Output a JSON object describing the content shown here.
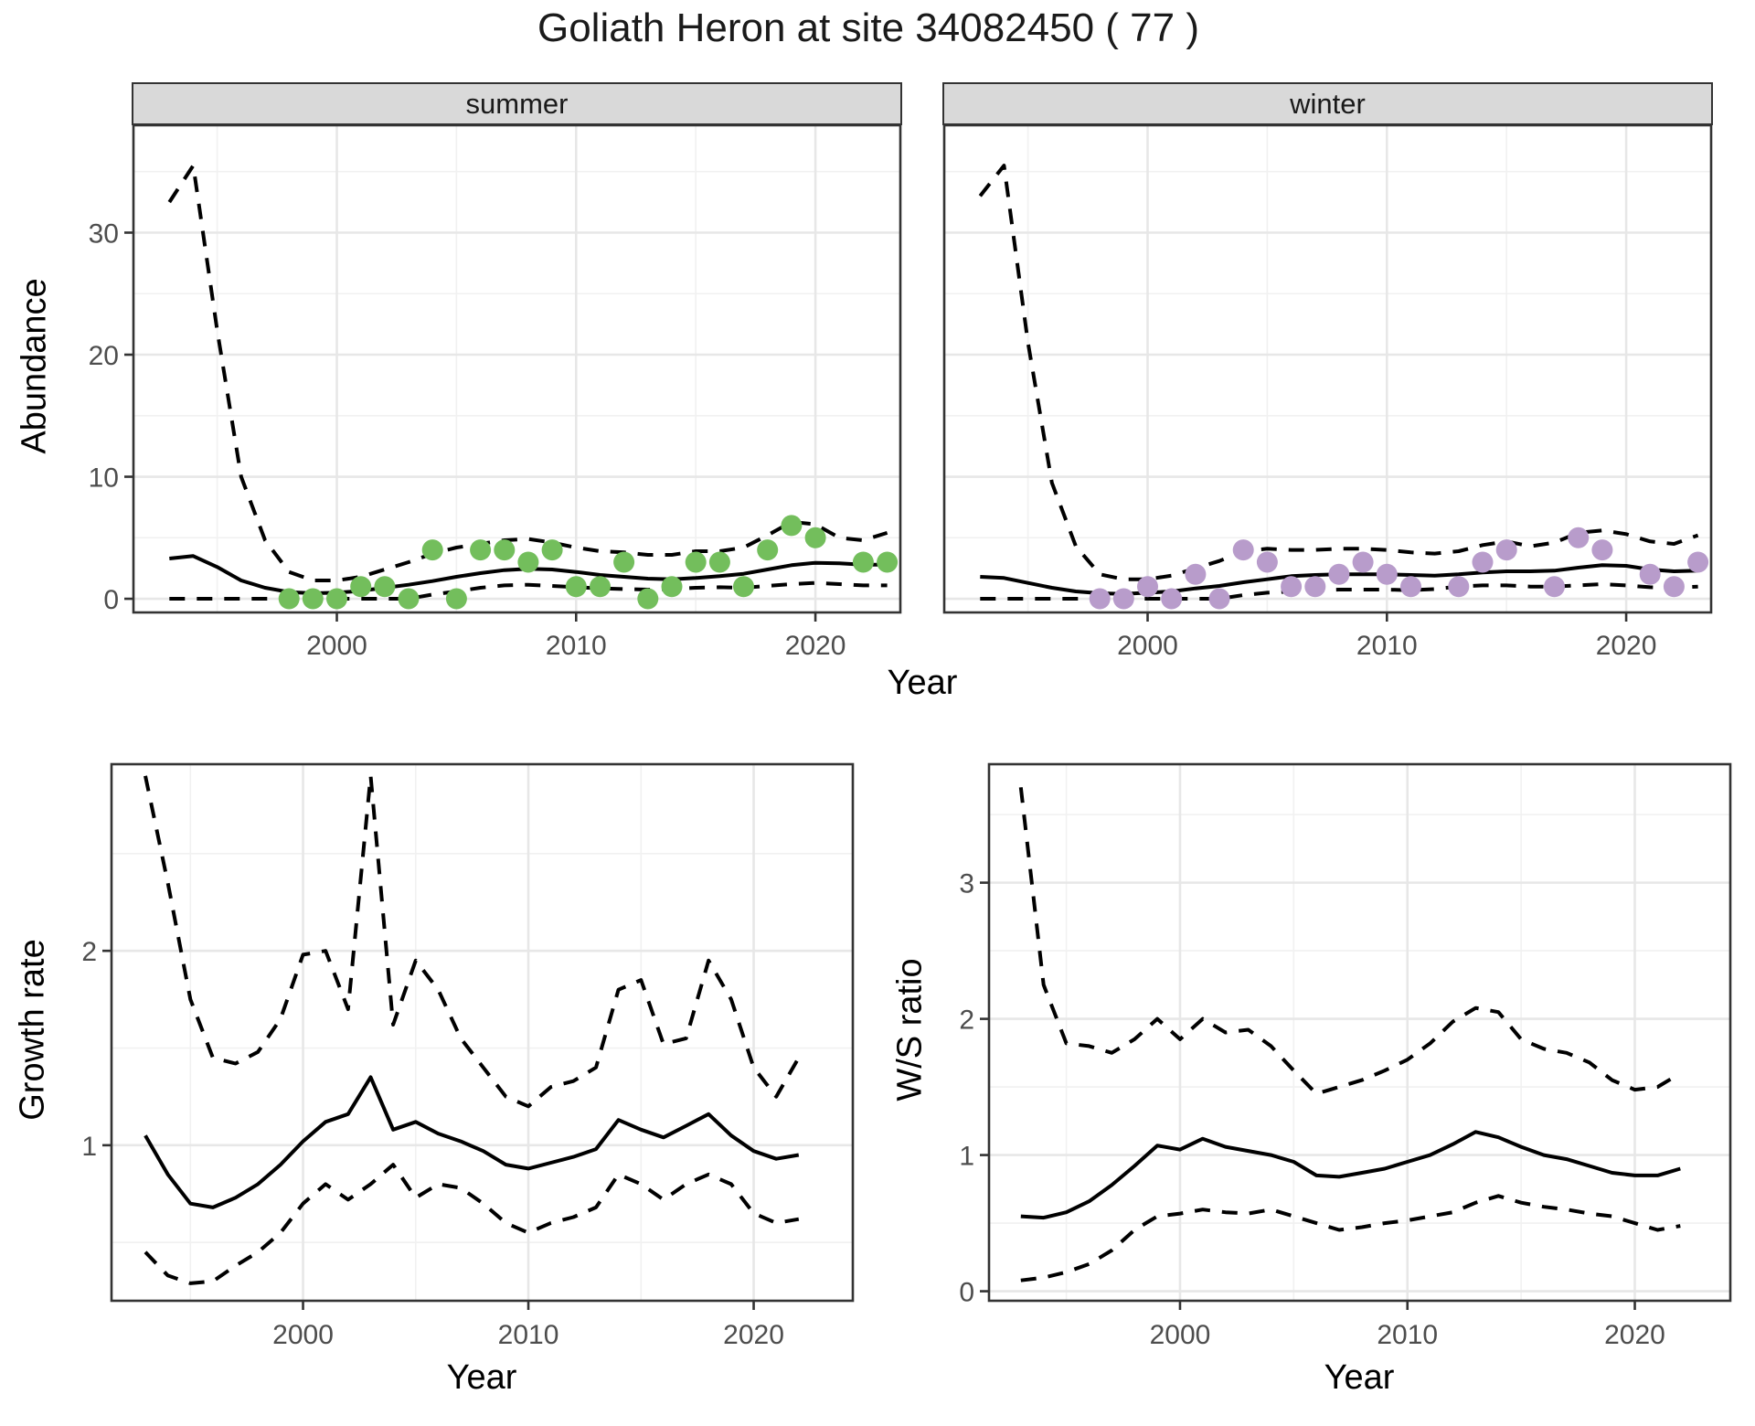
{
  "title": "Goliath Heron at site 34082450 ( 77 )",
  "colors": {
    "summer_point": "#73BE5C",
    "winter_point": "#B89CCB",
    "line": "#000000",
    "grid_major": "#E7E7E7",
    "grid_minor": "#F1F1F1",
    "panel_border": "#333333",
    "strip_bg": "#D9D9D9",
    "axis_text": "#4D4D4D"
  },
  "top_row": {
    "facets": [
      {
        "label": "summer"
      },
      {
        "label": "winter"
      }
    ],
    "ylabel": "Abundance",
    "xlabel": "Year"
  },
  "bottom_row": {
    "left": {
      "ylabel": "Growth rate",
      "xlabel": "Year"
    },
    "right": {
      "ylabel": "W/S ratio",
      "xlabel": "Year"
    }
  },
  "chart_data": [
    {
      "id": "abundance-summer",
      "type": "line",
      "facet": "summer",
      "xlabel": "Year",
      "ylabel": "Abundance",
      "xlim": [
        1991.5,
        2023.55
      ],
      "ylim": [
        -1.12,
        38.8
      ],
      "x_ticks": [
        2000,
        2010,
        2020
      ],
      "x_minor": [
        1995,
        2005,
        2015
      ],
      "y_ticks": [
        0,
        10,
        20,
        30
      ],
      "y_minor": [
        5,
        15,
        25,
        35
      ],
      "series": [
        {
          "name": "median",
          "style": "solid",
          "years": [
            1993,
            1994,
            1995,
            1996,
            1997,
            1998,
            1999,
            2000,
            2001,
            2002,
            2003,
            2004,
            2005,
            2006,
            2007,
            2008,
            2009,
            2010,
            2011,
            2012,
            2013,
            2014,
            2015,
            2016,
            2017,
            2018,
            2019,
            2020,
            2021,
            2022,
            2023
          ],
          "values": [
            3.3,
            3.5,
            2.6,
            1.5,
            0.9,
            0.55,
            0.45,
            0.5,
            0.65,
            0.9,
            1.15,
            1.45,
            1.8,
            2.1,
            2.35,
            2.45,
            2.4,
            2.2,
            1.95,
            1.8,
            1.65,
            1.6,
            1.7,
            1.85,
            2.05,
            2.4,
            2.75,
            2.95,
            2.9,
            2.8,
            2.8
          ]
        },
        {
          "name": "upper_ci",
          "style": "dashed",
          "years": [
            1993,
            1994,
            1995,
            1996,
            1997,
            1998,
            1999,
            2000,
            2001,
            2002,
            2003,
            2004,
            2005,
            2006,
            2007,
            2008,
            2009,
            2010,
            2011,
            2012,
            2013,
            2014,
            2015,
            2016,
            2017,
            2018,
            2019,
            2020,
            2021,
            2022,
            2023
          ],
          "values": [
            32.5,
            35.5,
            22,
            10,
            4.8,
            2.2,
            1.5,
            1.5,
            1.8,
            2.4,
            3.0,
            3.7,
            4.2,
            4.5,
            4.8,
            4.9,
            4.6,
            4.2,
            3.9,
            3.8,
            3.6,
            3.6,
            3.9,
            3.9,
            4.2,
            5.2,
            6.3,
            6.1,
            5.0,
            4.8,
            5.4
          ]
        },
        {
          "name": "lower_ci",
          "style": "dashed",
          "years": [
            1993,
            1994,
            1995,
            1996,
            1997,
            1998,
            1999,
            2000,
            2001,
            2002,
            2003,
            2004,
            2005,
            2006,
            2007,
            2008,
            2009,
            2010,
            2011,
            2012,
            2013,
            2014,
            2015,
            2016,
            2017,
            2018,
            2019,
            2020,
            2021,
            2022,
            2023
          ],
          "values": [
            0,
            0,
            0,
            0,
            0,
            0,
            0,
            0,
            0,
            0,
            0,
            0.35,
            0.6,
            0.9,
            1.1,
            1.15,
            1.05,
            0.95,
            0.85,
            0.8,
            0.75,
            0.8,
            0.9,
            0.95,
            0.9,
            1.05,
            1.2,
            1.3,
            1.2,
            1.1,
            1.1
          ]
        }
      ],
      "points": {
        "name": "observed-counts",
        "color": "#73BE5C",
        "years": [
          1998,
          1999,
          2000,
          2001,
          2002,
          2003,
          2004,
          2005,
          2006,
          2007,
          2008,
          2009,
          2010,
          2011,
          2012,
          2013,
          2014,
          2015,
          2016,
          2017,
          2018,
          2019,
          2020,
          2022,
          2023
        ],
        "values": [
          0,
          0,
          0,
          1,
          1,
          0,
          4,
          0,
          4,
          4,
          3,
          4,
          1,
          1,
          3,
          0,
          1,
          3,
          3,
          1,
          4,
          6,
          5,
          3,
          3
        ]
      }
    },
    {
      "id": "abundance-winter",
      "type": "line",
      "facet": "winter",
      "xlabel": "Year",
      "ylabel": "Abundance",
      "xlim": [
        1991.5,
        2023.55
      ],
      "ylim": [
        -1.12,
        38.8
      ],
      "x_ticks": [
        2000,
        2010,
        2020
      ],
      "x_minor": [
        1995,
        2005,
        2015
      ],
      "y_ticks": [
        0,
        10,
        20,
        30
      ],
      "y_minor": [
        5,
        15,
        25,
        35
      ],
      "series": [
        {
          "name": "median",
          "style": "solid",
          "years": [
            1993,
            1994,
            1995,
            1996,
            1997,
            1998,
            1999,
            2000,
            2001,
            2002,
            2003,
            2004,
            2005,
            2006,
            2007,
            2008,
            2009,
            2010,
            2011,
            2012,
            2013,
            2014,
            2015,
            2016,
            2017,
            2018,
            2019,
            2020,
            2021,
            2022,
            2023
          ],
          "values": [
            1.8,
            1.7,
            1.3,
            0.9,
            0.6,
            0.45,
            0.4,
            0.5,
            0.6,
            0.85,
            1.05,
            1.35,
            1.6,
            1.85,
            1.95,
            2.0,
            2.0,
            2.0,
            1.95,
            1.9,
            2.0,
            2.15,
            2.25,
            2.25,
            2.3,
            2.55,
            2.75,
            2.7,
            2.4,
            2.25,
            2.3
          ]
        },
        {
          "name": "upper_ci",
          "style": "dashed",
          "years": [
            1993,
            1994,
            1995,
            1996,
            1997,
            1998,
            1999,
            2000,
            2001,
            2002,
            2003,
            2004,
            2005,
            2006,
            2007,
            2008,
            2009,
            2010,
            2011,
            2012,
            2013,
            2014,
            2015,
            2016,
            2017,
            2018,
            2019,
            2020,
            2021,
            2022,
            2023
          ],
          "values": [
            33,
            35.5,
            21,
            9.5,
            4.3,
            2.0,
            1.6,
            1.6,
            1.9,
            2.5,
            3.1,
            3.9,
            4.1,
            4.0,
            4.0,
            4.1,
            4.1,
            4.0,
            3.8,
            3.7,
            3.9,
            4.4,
            4.7,
            4.3,
            4.6,
            5.4,
            5.6,
            5.3,
            4.7,
            4.5,
            5.2
          ]
        },
        {
          "name": "lower_ci",
          "style": "dashed",
          "years": [
            1993,
            1994,
            1995,
            1996,
            1997,
            1998,
            1999,
            2000,
            2001,
            2002,
            2003,
            2004,
            2005,
            2006,
            2007,
            2008,
            2009,
            2010,
            2011,
            2012,
            2013,
            2014,
            2015,
            2016,
            2017,
            2018,
            2019,
            2020,
            2021,
            2022,
            2023
          ],
          "values": [
            0,
            0,
            0,
            0,
            0,
            0,
            0,
            0,
            0,
            0,
            0,
            0.3,
            0.5,
            0.6,
            0.7,
            0.75,
            0.75,
            0.75,
            0.7,
            0.8,
            1.0,
            1.1,
            1.1,
            1.0,
            1.0,
            1.1,
            1.2,
            1.1,
            0.95,
            0.9,
            1.0
          ]
        }
      ],
      "points": {
        "name": "observed-counts",
        "color": "#B89CCB",
        "years": [
          1998,
          1999,
          2000,
          2001,
          2002,
          2003,
          2004,
          2005,
          2006,
          2007,
          2008,
          2009,
          2010,
          2011,
          2013,
          2014,
          2015,
          2017,
          2018,
          2019,
          2021,
          2022,
          2023
        ],
        "values": [
          0,
          0,
          1,
          0,
          2,
          0,
          4,
          3,
          1,
          1,
          2,
          3,
          2,
          1,
          1,
          3,
          4,
          1,
          5,
          4,
          2,
          1,
          3
        ]
      }
    },
    {
      "id": "growth-rate",
      "type": "line",
      "facet": null,
      "xlabel": "Year",
      "ylabel": "Growth rate",
      "xlim": [
        1991.5,
        2024.4
      ],
      "ylim": [
        0.2,
        2.96
      ],
      "x_ticks": [
        2000,
        2010,
        2020
      ],
      "x_minor": [
        1995,
        2005,
        2015
      ],
      "y_ticks": [
        1,
        2
      ],
      "y_minor": [
        0.5,
        1.5,
        2.5
      ],
      "series": [
        {
          "name": "median",
          "style": "solid",
          "years": [
            1993,
            1994,
            1995,
            1996,
            1997,
            1998,
            1999,
            2000,
            2001,
            2002,
            2003,
            2004,
            2005,
            2006,
            2007,
            2008,
            2009,
            2010,
            2011,
            2012,
            2013,
            2014,
            2015,
            2016,
            2017,
            2018,
            2019,
            2020,
            2021,
            2022
          ],
          "values": [
            1.05,
            0.85,
            0.7,
            0.68,
            0.73,
            0.8,
            0.9,
            1.02,
            1.12,
            1.16,
            1.35,
            1.08,
            1.12,
            1.06,
            1.02,
            0.97,
            0.9,
            0.88,
            0.91,
            0.94,
            0.98,
            1.13,
            1.08,
            1.04,
            1.1,
            1.16,
            1.05,
            0.97,
            0.93,
            0.95
          ]
        },
        {
          "name": "upper_ci",
          "style": "dashed",
          "years": [
            1993,
            1994,
            1995,
            1996,
            1997,
            1998,
            1999,
            2000,
            2001,
            2002,
            2003,
            2004,
            2005,
            2006,
            2007,
            2008,
            2009,
            2010,
            2011,
            2012,
            2013,
            2014,
            2015,
            2016,
            2017,
            2018,
            2019,
            2020,
            2021,
            2022
          ],
          "values": [
            2.9,
            2.35,
            1.75,
            1.45,
            1.42,
            1.48,
            1.65,
            1.98,
            2.0,
            1.7,
            2.9,
            1.62,
            1.95,
            1.8,
            1.55,
            1.4,
            1.25,
            1.2,
            1.3,
            1.33,
            1.4,
            1.8,
            1.85,
            1.52,
            1.55,
            1.95,
            1.75,
            1.4,
            1.25,
            1.45
          ]
        },
        {
          "name": "lower_ci",
          "style": "dashed",
          "years": [
            1993,
            1994,
            1995,
            1996,
            1997,
            1998,
            1999,
            2000,
            2001,
            2002,
            2003,
            2004,
            2005,
            2006,
            2007,
            2008,
            2009,
            2010,
            2011,
            2012,
            2013,
            2014,
            2015,
            2016,
            2017,
            2018,
            2019,
            2020,
            2021,
            2022
          ],
          "values": [
            0.45,
            0.33,
            0.29,
            0.3,
            0.38,
            0.45,
            0.55,
            0.7,
            0.8,
            0.72,
            0.8,
            0.9,
            0.73,
            0.8,
            0.78,
            0.7,
            0.6,
            0.55,
            0.6,
            0.63,
            0.68,
            0.85,
            0.8,
            0.72,
            0.8,
            0.85,
            0.8,
            0.65,
            0.6,
            0.62
          ]
        }
      ],
      "points": null
    },
    {
      "id": "ws-ratio",
      "type": "line",
      "facet": null,
      "xlabel": "Year",
      "ylabel": "W/S ratio",
      "xlim": [
        1991.6,
        2024.2
      ],
      "ylim": [
        -0.07,
        3.87
      ],
      "x_ticks": [
        2000,
        2010,
        2020
      ],
      "x_minor": [
        1995,
        2005,
        2015
      ],
      "y_ticks": [
        0,
        1,
        2,
        3
      ],
      "y_minor": [
        0.5,
        1.5,
        2.5,
        3.5
      ],
      "series": [
        {
          "name": "median",
          "style": "solid",
          "years": [
            1993,
            1994,
            1995,
            1996,
            1997,
            1998,
            1999,
            2000,
            2001,
            2002,
            2003,
            2004,
            2005,
            2006,
            2007,
            2008,
            2009,
            2010,
            2011,
            2012,
            2013,
            2014,
            2015,
            2016,
            2017,
            2018,
            2019,
            2020,
            2021,
            2022
          ],
          "values": [
            0.55,
            0.54,
            0.58,
            0.66,
            0.78,
            0.92,
            1.07,
            1.04,
            1.12,
            1.06,
            1.03,
            1.0,
            0.95,
            0.85,
            0.84,
            0.87,
            0.9,
            0.95,
            1.0,
            1.08,
            1.17,
            1.13,
            1.06,
            1.0,
            0.97,
            0.92,
            0.87,
            0.85,
            0.85,
            0.9
          ]
        },
        {
          "name": "upper_ci",
          "style": "dashed",
          "years": [
            1993,
            1994,
            1995,
            1996,
            1997,
            1998,
            1999,
            2000,
            2001,
            2002,
            2003,
            2004,
            2005,
            2006,
            2007,
            2008,
            2009,
            2010,
            2011,
            2012,
            2013,
            2014,
            2015,
            2016,
            2017,
            2018,
            2019,
            2020,
            2021,
            2022
          ],
          "values": [
            3.7,
            2.25,
            1.82,
            1.8,
            1.75,
            1.85,
            2.0,
            1.85,
            2.0,
            1.9,
            1.92,
            1.8,
            1.62,
            1.45,
            1.5,
            1.55,
            1.62,
            1.7,
            1.82,
            1.98,
            2.08,
            2.05,
            1.85,
            1.78,
            1.75,
            1.68,
            1.55,
            1.48,
            1.5,
            1.6
          ]
        },
        {
          "name": "lower_ci",
          "style": "dashed",
          "years": [
            1993,
            1994,
            1995,
            1996,
            1997,
            1998,
            1999,
            2000,
            2001,
            2002,
            2003,
            2004,
            2005,
            2006,
            2007,
            2008,
            2009,
            2010,
            2011,
            2012,
            2013,
            2014,
            2015,
            2016,
            2017,
            2018,
            2019,
            2020,
            2021,
            2022
          ],
          "values": [
            0.08,
            0.1,
            0.14,
            0.2,
            0.3,
            0.45,
            0.55,
            0.57,
            0.6,
            0.58,
            0.57,
            0.6,
            0.55,
            0.5,
            0.45,
            0.47,
            0.5,
            0.52,
            0.55,
            0.58,
            0.65,
            0.7,
            0.65,
            0.62,
            0.6,
            0.57,
            0.55,
            0.5,
            0.45,
            0.48
          ]
        }
      ],
      "points": null
    }
  ]
}
